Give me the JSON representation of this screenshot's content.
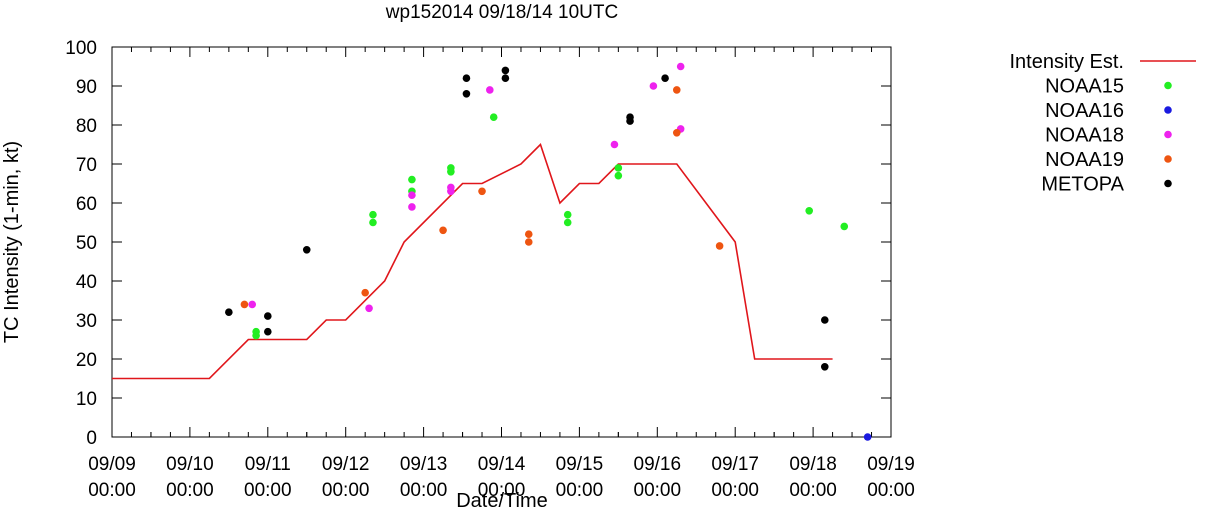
{
  "chart_data": {
    "type": "line",
    "title": "wp152014 09/18/14 10UTC",
    "xlabel": "Date/Time",
    "ylabel": "TC Intensity (1-min, kt)",
    "xlim": [
      0,
      10
    ],
    "ylim": [
      0,
      100
    ],
    "grid": false,
    "legend_position": "right",
    "x_tick_dates": [
      "09/09",
      "09/10",
      "09/11",
      "09/12",
      "09/13",
      "09/14",
      "09/15",
      "09/16",
      "09/17",
      "09/18",
      "09/19"
    ],
    "x_tick_times": [
      "00:00",
      "00:00",
      "00:00",
      "00:00",
      "00:00",
      "00:00",
      "00:00",
      "00:00",
      "00:00",
      "00:00",
      "00:00"
    ],
    "y_ticks": [
      "0",
      "10",
      "20",
      "30",
      "40",
      "50",
      "60",
      "70",
      "80",
      "90",
      "100"
    ],
    "series": [
      {
        "name": "Intensity Est.",
        "kind": "line",
        "color": "#e0161b",
        "x": [
          0,
          1.25,
          1.75,
          2.5,
          2.75,
          3.0,
          3.5,
          3.75,
          4.5,
          4.75,
          5.25,
          5.5,
          5.75,
          6.0,
          6.25,
          6.5,
          6.75,
          7.25,
          8.0,
          8.25,
          8.75,
          9.25
        ],
        "y": [
          15,
          15,
          25,
          25,
          30,
          30,
          40,
          50,
          65,
          65,
          70,
          75,
          60,
          65,
          65,
          70,
          70,
          70,
          50,
          20,
          20,
          20
        ]
      },
      {
        "name": "NOAA15",
        "kind": "scatter",
        "color": "#22ee22",
        "x": [
          1.85,
          1.85,
          3.35,
          3.35,
          3.85,
          3.85,
          4.35,
          4.35,
          4.9,
          5.85,
          5.85,
          6.5,
          6.5,
          8.95,
          9.4
        ],
        "y": [
          27,
          26,
          57,
          55,
          66,
          63,
          69,
          68,
          82,
          57,
          55,
          69,
          67,
          58,
          54
        ]
      },
      {
        "name": "NOAA16",
        "kind": "scatter",
        "color": "#1a1ae0",
        "x": [
          9.7
        ],
        "y": [
          0
        ]
      },
      {
        "name": "NOAA18",
        "kind": "scatter",
        "color": "#ee22ee",
        "x": [
          1.8,
          3.3,
          3.85,
          3.85,
          4.35,
          4.35,
          4.85,
          6.45,
          6.95,
          7.3,
          7.3
        ],
        "y": [
          34,
          33,
          62,
          59,
          64,
          63,
          89,
          75,
          90,
          95,
          79
        ]
      },
      {
        "name": "NOAA19",
        "kind": "scatter",
        "color": "#ee5511",
        "x": [
          1.7,
          3.25,
          4.25,
          4.75,
          5.35,
          5.35,
          7.25,
          7.25,
          7.8
        ],
        "y": [
          34,
          37,
          53,
          63,
          52,
          50,
          89,
          78,
          49
        ]
      },
      {
        "name": "METOPA",
        "kind": "scatter",
        "color": "#000000",
        "x": [
          1.5,
          2.0,
          2.0,
          2.5,
          4.55,
          4.55,
          5.05,
          5.05,
          6.65,
          6.65,
          7.1,
          9.15,
          9.15
        ],
        "y": [
          32,
          31,
          27,
          48,
          92,
          88,
          94,
          92,
          82,
          81,
          92,
          30,
          18
        ]
      }
    ]
  }
}
